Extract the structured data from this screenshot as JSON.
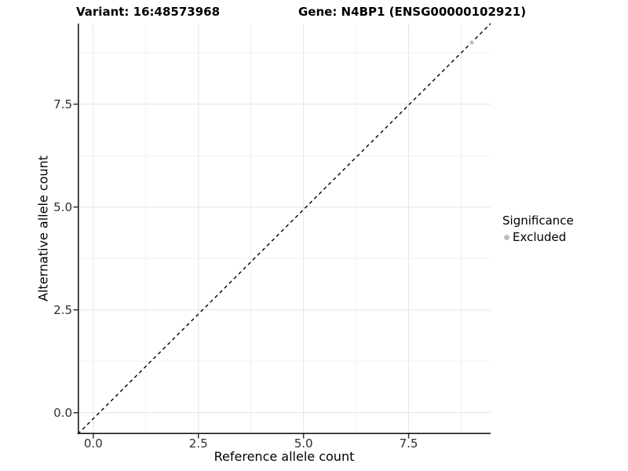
{
  "header": {
    "variant_title": "Variant: 16:48573968",
    "gene_title": "Gene: N4BP1 (ENSG00000102921)"
  },
  "legend": {
    "title": "Significance",
    "items": [
      {
        "label": "Excluded",
        "color": "#bebebe"
      }
    ]
  },
  "chart_data": {
    "type": "scatter",
    "title": "Variant: 16:48573968   Gene: N4BP1 (ENSG00000102921)",
    "xlabel": "Reference allele count",
    "ylabel": "Alternative allele count",
    "xlim": [
      -0.37,
      9.45
    ],
    "ylim": [
      -0.52,
      9.46
    ],
    "x_ticks": [
      0.0,
      2.5,
      5.0,
      7.5
    ],
    "x_tick_labels": [
      "0.0",
      "2.5",
      "5.0",
      "7.5"
    ],
    "y_ticks": [
      0.0,
      2.5,
      5.0,
      7.5
    ],
    "y_tick_labels": [
      "0.0",
      "2.5",
      "5.0",
      "7.5"
    ],
    "minor_ticks_x": [
      1.25,
      3.75,
      6.25,
      8.75
    ],
    "minor_ticks_y": [
      1.25,
      3.75,
      6.25,
      8.75
    ],
    "grid": true,
    "legend_position": "right",
    "series": [
      {
        "name": "Excluded",
        "color": "#bebebe",
        "points": [
          {
            "x": 9,
            "y": 9
          }
        ]
      }
    ],
    "reference_line": {
      "type": "identity y=x",
      "style": "dashed",
      "color": "#000000"
    },
    "colors": {
      "background": "#ffffff",
      "grid_major": "#e4e4e4",
      "grid_minor": "#f0f0f0",
      "axis_line": "#1a1a1a",
      "tick_mark": "#333333",
      "tick_text": "#303030"
    }
  }
}
